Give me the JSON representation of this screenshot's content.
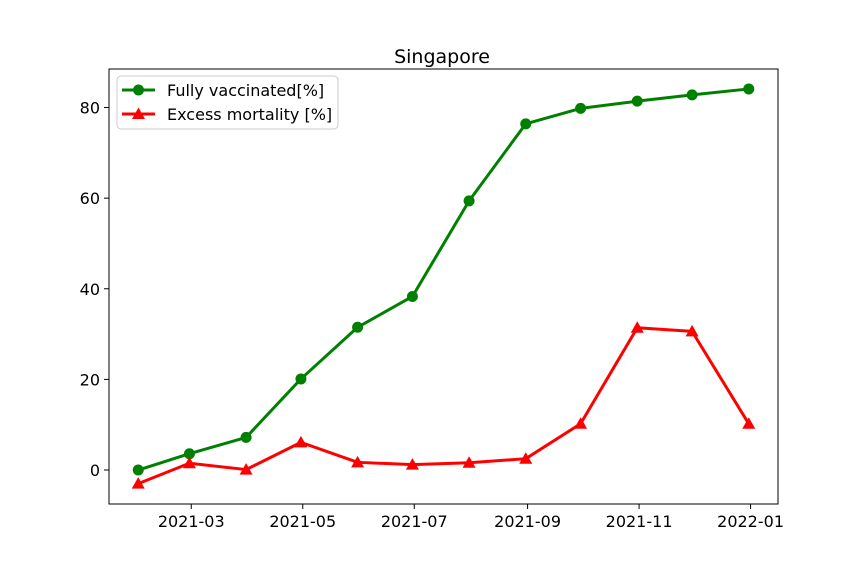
{
  "chart_data": {
    "type": "line",
    "title": "Singapore",
    "xlabel": "",
    "ylabel": "",
    "x": [
      "2021-01-31",
      "2021-02-28",
      "2021-03-31",
      "2021-04-30",
      "2021-05-31",
      "2021-06-30",
      "2021-07-31",
      "2021-08-31",
      "2021-09-30",
      "2021-10-31",
      "2021-11-30",
      "2021-12-31"
    ],
    "x_ticks": [
      "2021-03",
      "2021-05",
      "2021-07",
      "2021-09",
      "2021-11",
      "2022-01"
    ],
    "y_ticks": [
      0,
      20,
      40,
      60,
      80
    ],
    "ylim": [
      -7.5,
      88.5
    ],
    "xlim": [
      "2021-01-15",
      "2022-01-16"
    ],
    "grid": false,
    "legend_position": "top-left",
    "series": [
      {
        "name": "Fully vaccinated[%]",
        "color": "#008000",
        "marker": "circle",
        "values": [
          0.0,
          3.6,
          7.2,
          20.1,
          31.5,
          38.3,
          59.4,
          76.4,
          79.8,
          81.4,
          82.8,
          84.1
        ]
      },
      {
        "name": "Excess mortality [%]",
        "color": "#ff0000",
        "marker": "triangle",
        "values": [
          -3.0,
          1.5,
          0.1,
          6.1,
          1.7,
          1.2,
          1.6,
          2.5,
          10.2,
          31.4,
          30.6,
          10.2
        ]
      }
    ]
  }
}
